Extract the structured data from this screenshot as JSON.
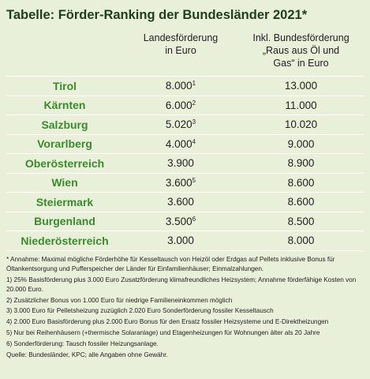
{
  "title": "Tabelle: Förder-Ranking der Bundesländer 2021*",
  "table": {
    "header": [
      [
        "Landesförderung",
        "in Euro"
      ],
      [
        "Inkl. Bundesförderung",
        "„Raus aus Öl und",
        "Gas“ in Euro"
      ]
    ],
    "rows": [
      {
        "state": "Tirol",
        "land": "8.000",
        "note": "1",
        "total": "13.000"
      },
      {
        "state": "Kärnten",
        "land": "6.000",
        "note": "2",
        "total": "11.000"
      },
      {
        "state": "Salzburg",
        "land": "5.020",
        "note": "3",
        "total": "10.020"
      },
      {
        "state": "Vorarlberg",
        "land": "4.000",
        "note": "4",
        "total": "9.000"
      },
      {
        "state": "Oberösterreich",
        "land": "3.900",
        "total": "8.900"
      },
      {
        "state": "Wien",
        "land": "3.600",
        "note": "5",
        "total": "8.600"
      },
      {
        "state": "Steiermark",
        "land": "3.600",
        "total": "8.600"
      },
      {
        "state": "Burgenland",
        "land": "3.500",
        "note": "6",
        "total": "8.500"
      },
      {
        "state": "Niederösterreich",
        "land": "3.000",
        "total": "8.000"
      }
    ]
  },
  "footnotes": [
    "* Annahme: Maximal mögliche Förderhöhe für Kesseltausch von Heizöl oder Erdgas auf Pellets inklusive Bonus für Öltankentsorgung und Pufferspeicher der Länder für Einfamilienhäuser; Einmalzahlungen.",
    "1) 25% Basisförderung plus 3.000 Euro Zusatzförderung klimafreundliches Heizsystem; Annahme förderfähige Kosten von 20.000 Euro.",
    "2) Zusätzlicher Bonus von 1.000 Euro für niedrige Familieneinkommen möglich",
    "3) 3.000 Euro für Pelletsheizung zuzüglich 2.020 Euro Sonderförderung fossiler Kesseltausch",
    "4) 2.000 Euro Basisförderung plus 2.000 Euro Bonus für den Ersatz fossiler Heizsysteme und E-Direktheizungen",
    "5) Nur bei Reihenhäusern (+thermische Solaranlage) und Etagenheizungen für Wohnungen älter als 20 Jahre",
    "6) Sonderförderung: Tausch fossiler Heizungsanlage."
  ],
  "source": "Quelle: Bundesländer, KPC; alle Angaben ohne Gewähr."
}
